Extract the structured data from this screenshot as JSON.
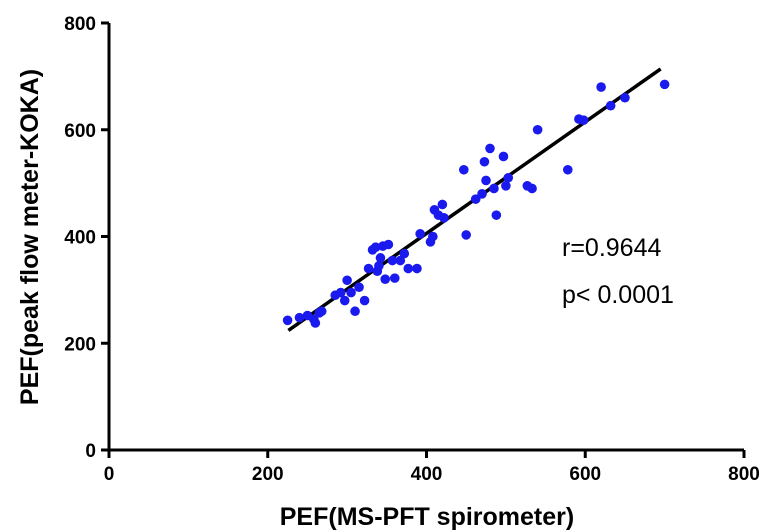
{
  "chart_data": {
    "type": "scatter",
    "xlabel": "PEF(MS-PFT spirometer)",
    "ylabel": "PEF(peak flow meter-KOKA)",
    "xlim": [
      0,
      800
    ],
    "ylim": [
      0,
      800
    ],
    "xticks": [
      "0",
      "200",
      "400",
      "600",
      "800"
    ],
    "yticks": [
      "0",
      "200",
      "400",
      "600",
      "800"
    ],
    "grid": false,
    "colors": {
      "points": "#1a1aee",
      "line": "#000000"
    },
    "points": [
      [
        225,
        243
      ],
      [
        240,
        248
      ],
      [
        250,
        252
      ],
      [
        258,
        245
      ],
      [
        260,
        238
      ],
      [
        265,
        257
      ],
      [
        268,
        260
      ],
      [
        285,
        290
      ],
      [
        292,
        295
      ],
      [
        297,
        280
      ],
      [
        300,
        318
      ],
      [
        305,
        295
      ],
      [
        310,
        260
      ],
      [
        315,
        305
      ],
      [
        322,
        280
      ],
      [
        327,
        340
      ],
      [
        332,
        375
      ],
      [
        336,
        380
      ],
      [
        338,
        335
      ],
      [
        340,
        345
      ],
      [
        342,
        360
      ],
      [
        345,
        382
      ],
      [
        348,
        320
      ],
      [
        352,
        385
      ],
      [
        357,
        355
      ],
      [
        360,
        322
      ],
      [
        367,
        355
      ],
      [
        372,
        368
      ],
      [
        377,
        340
      ],
      [
        388,
        340
      ],
      [
        392,
        405
      ],
      [
        405,
        390
      ],
      [
        408,
        400
      ],
      [
        410,
        450
      ],
      [
        415,
        440
      ],
      [
        420,
        460
      ],
      [
        422,
        435
      ],
      [
        447,
        525
      ],
      [
        450,
        403
      ],
      [
        462,
        470
      ],
      [
        470,
        480
      ],
      [
        473,
        540
      ],
      [
        475,
        505
      ],
      [
        480,
        565
      ],
      [
        485,
        490
      ],
      [
        488,
        440
      ],
      [
        497,
        550
      ],
      [
        500,
        495
      ],
      [
        503,
        510
      ],
      [
        527,
        495
      ],
      [
        533,
        490
      ],
      [
        540,
        600
      ],
      [
        578,
        525
      ],
      [
        592,
        620
      ],
      [
        598,
        618
      ],
      [
        620,
        680
      ],
      [
        632,
        645
      ],
      [
        650,
        660
      ],
      [
        700,
        685
      ]
    ],
    "fit_line": {
      "x": [
        226,
        695
      ],
      "y": [
        224,
        714
      ]
    },
    "annotations": [
      "r=0.9644",
      "p< 0.0001"
    ]
  }
}
